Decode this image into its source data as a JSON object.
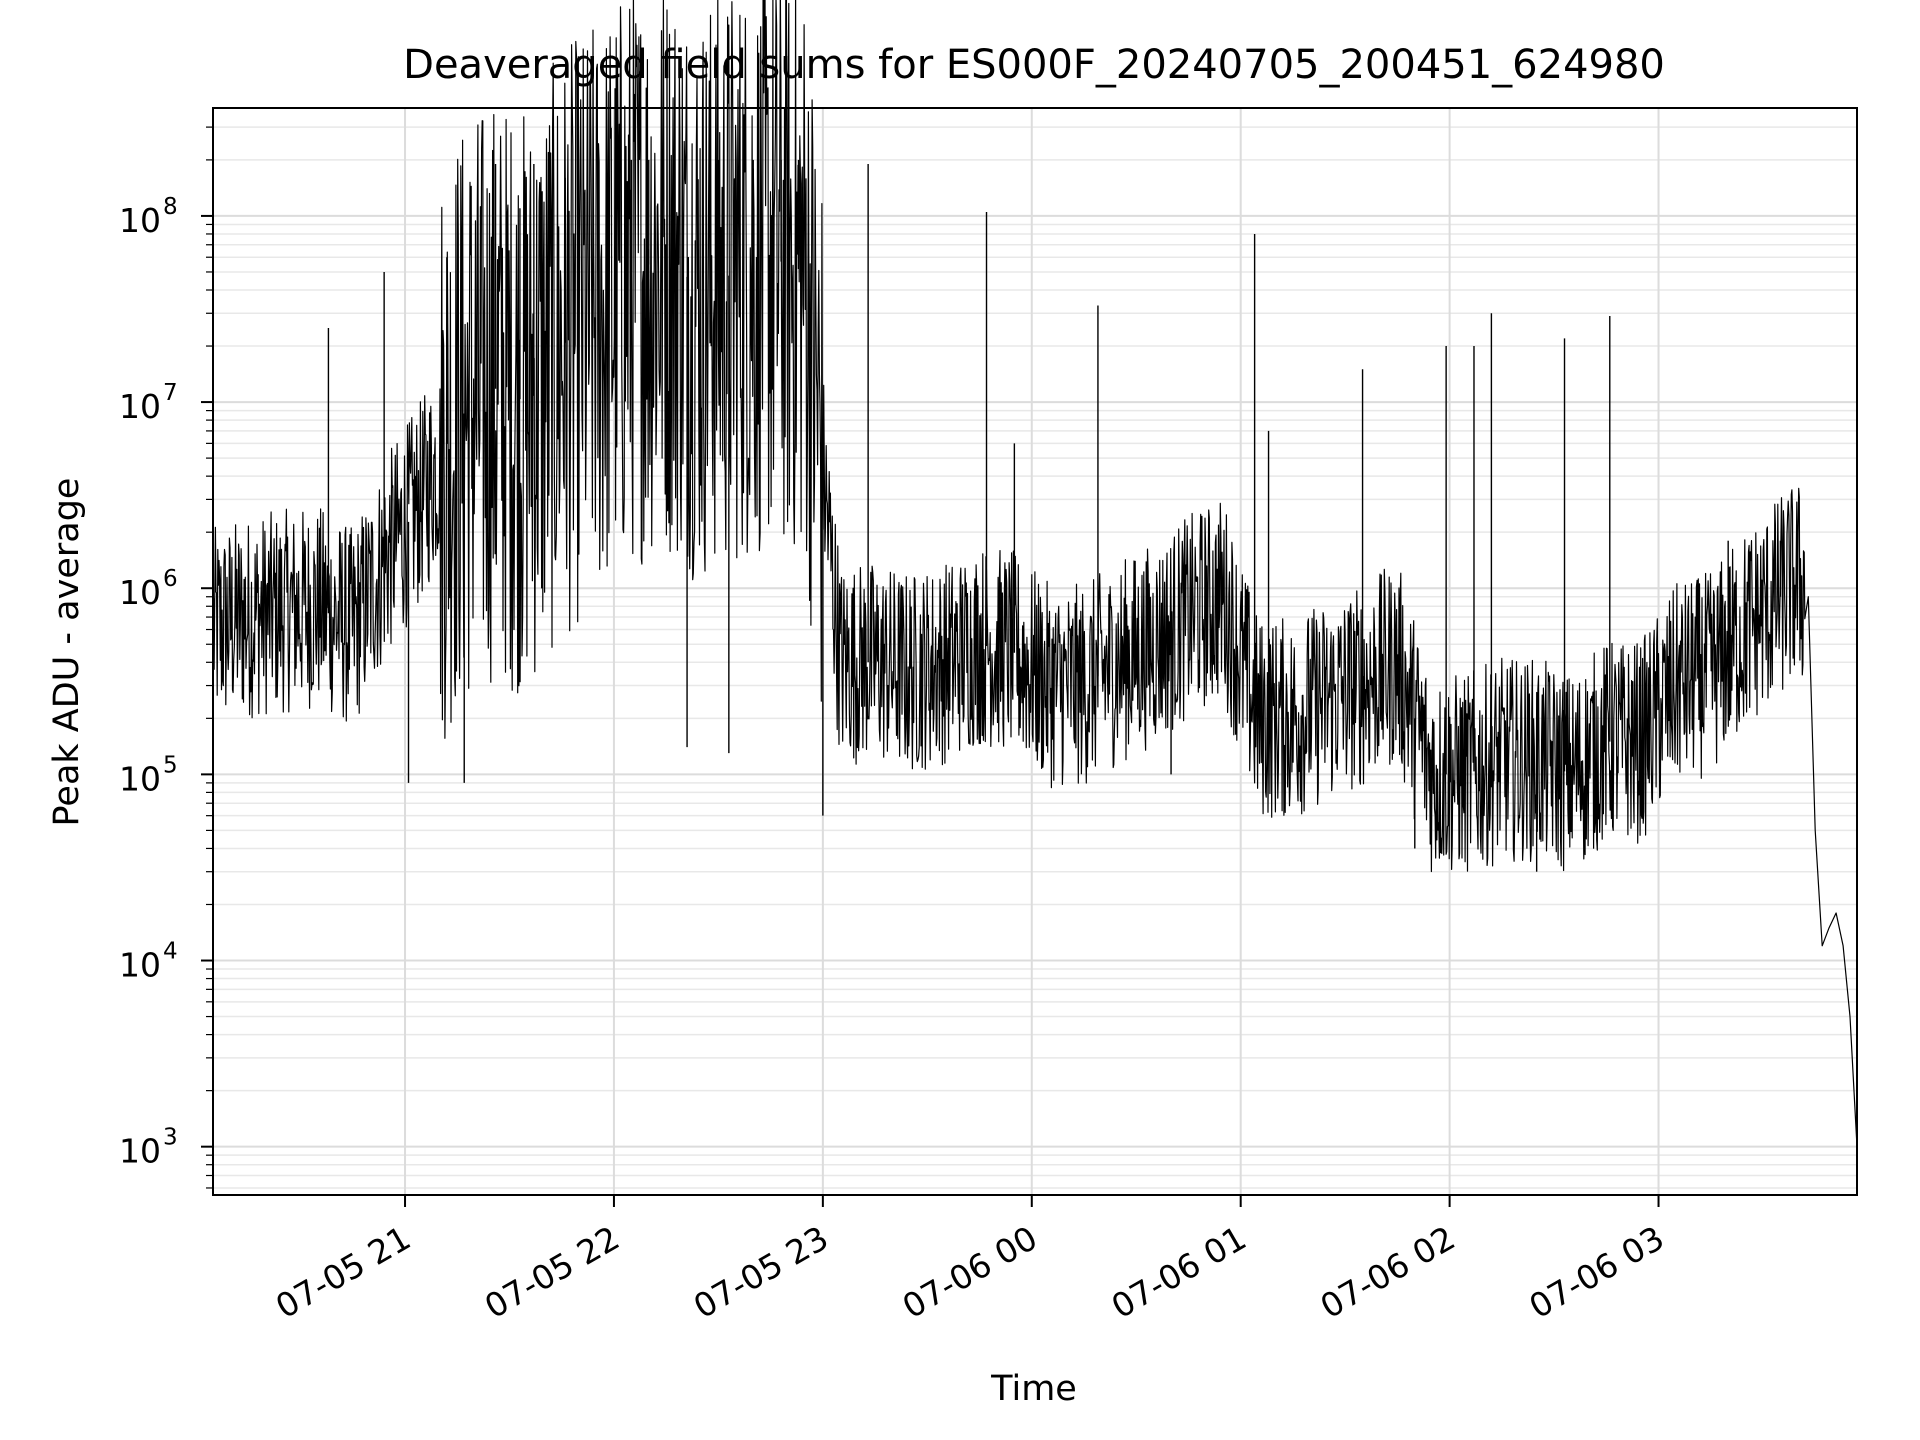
{
  "chart_data": {
    "type": "line",
    "title": "Deaveraged field sums for ES000F_20240705_200451_624980",
    "xlabel": "Time",
    "ylabel": "Peak ADU - average",
    "yscale": "log",
    "ylim": [
      550,
      380000000
    ],
    "xlim": [
      "2024-07-05 20:04:51",
      "2024-07-06 03:57:00"
    ],
    "grid": true,
    "x_ticks": [
      {
        "value": "2024-07-05 21:00",
        "label": "07-05 21"
      },
      {
        "value": "2024-07-05 22:00",
        "label": "07-05 22"
      },
      {
        "value": "2024-07-05 23:00",
        "label": "07-05 23"
      },
      {
        "value": "2024-07-06 00:00",
        "label": "07-06 00"
      },
      {
        "value": "2024-07-06 01:00",
        "label": "07-06 01"
      },
      {
        "value": "2024-07-06 02:00",
        "label": "07-06 02"
      },
      {
        "value": "2024-07-06 03:00",
        "label": "07-06 03"
      }
    ],
    "y_ticks": [
      {
        "value": 1000,
        "base": "10",
        "exp": "3"
      },
      {
        "value": 10000,
        "base": "10",
        "exp": "4"
      },
      {
        "value": 100000,
        "base": "10",
        "exp": "5"
      },
      {
        "value": 1000000,
        "base": "10",
        "exp": "6"
      },
      {
        "value": 10000000,
        "base": "10",
        "exp": "7"
      },
      {
        "value": 100000000,
        "base": "10",
        "exp": "8"
      }
    ],
    "series": [
      {
        "color": "#000000",
        "x": [
          "2024-07-05 20:05",
          "2024-07-05 20:15",
          "2024-07-05 20:25",
          "2024-07-05 20:35",
          "2024-07-05 20:45",
          "2024-07-05 20:55",
          "2024-07-05 21:05",
          "2024-07-05 21:15",
          "2024-07-05 21:25",
          "2024-07-05 21:35",
          "2024-07-05 21:45",
          "2024-07-05 21:55",
          "2024-07-05 22:05",
          "2024-07-05 22:15",
          "2024-07-05 22:25",
          "2024-07-05 22:35",
          "2024-07-05 22:45",
          "2024-07-05 22:55",
          "2024-07-05 23:05",
          "2024-07-05 23:15",
          "2024-07-05 23:25",
          "2024-07-05 23:35",
          "2024-07-05 23:45",
          "2024-07-05 23:55",
          "2024-07-06 00:05",
          "2024-07-06 00:15",
          "2024-07-06 00:25",
          "2024-07-06 00:35",
          "2024-07-06 00:45",
          "2024-07-06 00:55",
          "2024-07-06 01:05",
          "2024-07-06 01:15",
          "2024-07-06 01:25",
          "2024-07-06 01:35",
          "2024-07-06 01:45",
          "2024-07-06 01:55",
          "2024-07-06 02:05",
          "2024-07-06 02:15",
          "2024-07-06 02:25",
          "2024-07-06 02:35",
          "2024-07-06 02:45",
          "2024-07-06 02:55",
          "2024-07-06 03:05",
          "2024-07-06 03:15",
          "2024-07-06 03:25",
          "2024-07-06 03:35",
          "2024-07-06 03:40",
          "2024-07-06 03:43",
          "2024-07-06 03:45",
          "2024-07-06 03:47",
          "2024-07-06 03:49",
          "2024-07-06 03:51",
          "2024-07-06 03:53",
          "2024-07-06 03:55",
          "2024-07-06 03:57"
        ],
        "y": [
          600000,
          700000,
          750000,
          800000,
          600000,
          1500000,
          3000000,
          8000000,
          12000000,
          10000000,
          20000000,
          30000000,
          50000000,
          60000000,
          40000000,
          50000000,
          60000000,
          50000000,
          400000,
          400000,
          350000,
          400000,
          500000,
          450000,
          300000,
          300000,
          400000,
          500000,
          700000,
          900000,
          200000,
          200000,
          250000,
          300000,
          400000,
          100000,
          100000,
          120000,
          120000,
          100000,
          150000,
          150000,
          300000,
          350000,
          600000,
          900000,
          1100000,
          900000,
          50000,
          12000,
          15000,
          18000,
          12000,
          5000,
          1000
        ],
        "spikes": [
          {
            "x": "2024-07-05 20:38",
            "y": 25000000
          },
          {
            "x": "2024-07-05 20:54",
            "y": 50000000
          },
          {
            "x": "2024-07-05 21:01",
            "y": 90000
          },
          {
            "x": "2024-07-05 21:12",
            "y": 60000000
          },
          {
            "x": "2024-07-05 21:17",
            "y": 90000
          },
          {
            "x": "2024-07-05 21:26",
            "y": 190000000
          },
          {
            "x": "2024-07-05 21:33",
            "y": 110000000
          },
          {
            "x": "2024-07-05 21:37",
            "y": 190000000
          },
          {
            "x": "2024-07-05 21:46",
            "y": 160000000
          },
          {
            "x": "2024-07-05 22:05",
            "y": 200000000
          },
          {
            "x": "2024-07-05 22:10",
            "y": 200000000
          },
          {
            "x": "2024-07-05 22:21",
            "y": 140000
          },
          {
            "x": "2024-07-05 22:30",
            "y": 200000000
          },
          {
            "x": "2024-07-05 22:33",
            "y": 130000
          },
          {
            "x": "2024-07-05 22:40",
            "y": 200000000
          },
          {
            "x": "2024-07-05 22:48",
            "y": 200000000
          },
          {
            "x": "2024-07-05 22:53",
            "y": 200000000
          },
          {
            "x": "2024-07-05 23:00",
            "y": 60000
          },
          {
            "x": "2024-07-05 23:13",
            "y": 190000000
          },
          {
            "x": "2024-07-05 23:47",
            "y": 105000000
          },
          {
            "x": "2024-07-05 23:55",
            "y": 6000000
          },
          {
            "x": "2024-07-06 00:19",
            "y": 33000000
          },
          {
            "x": "2024-07-06 00:40",
            "y": 100000
          },
          {
            "x": "2024-07-06 01:04",
            "y": 80000000
          },
          {
            "x": "2024-07-06 01:08",
            "y": 7000000
          },
          {
            "x": "2024-07-06 01:35",
            "y": 15000000
          },
          {
            "x": "2024-07-06 01:50",
            "y": 40000
          },
          {
            "x": "2024-07-06 01:59",
            "y": 20000000
          },
          {
            "x": "2024-07-06 02:07",
            "y": 20000000
          },
          {
            "x": "2024-07-06 02:12",
            "y": 30000000
          },
          {
            "x": "2024-07-06 02:25",
            "y": 30000
          },
          {
            "x": "2024-07-06 02:33",
            "y": 22000000
          },
          {
            "x": "2024-07-06 02:46",
            "y": 29000000
          },
          {
            "x": "2024-07-06 03:20",
            "y": 1800000
          },
          {
            "x": "2024-07-06 03:35",
            "y": 1800000
          }
        ]
      }
    ]
  }
}
